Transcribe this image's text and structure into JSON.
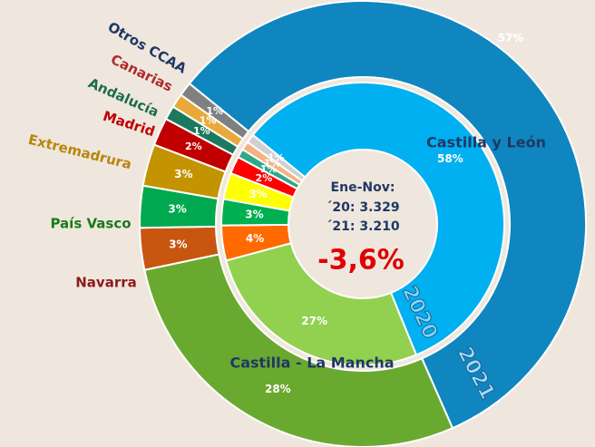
{
  "chart_data": {
    "type": "donut",
    "categories": [
      "Castilla y León",
      "Castilla - La Mancha",
      "Navarra",
      "País Vasco",
      "Extremadrura",
      "Madrid",
      "Andalucía",
      "Canarias",
      "Otros CCAA"
    ],
    "series": [
      {
        "name": "2021",
        "values": [
          57,
          28,
          3,
          3,
          3,
          2,
          1,
          1,
          1
        ],
        "value_labels": [
          "57%",
          "28%",
          "3%",
          "3%",
          "3%",
          "2%",
          "1%",
          "1%",
          "1%"
        ],
        "colors": [
          "#0f86c0",
          "#6aa92f",
          "#c8560f",
          "#00a94f",
          "#c39300",
          "#c00000",
          "#1b7a5e",
          "#e9a93a",
          "#808080"
        ]
      },
      {
        "name": "2020",
        "values": [
          58,
          27,
          4,
          3,
          3,
          2,
          1,
          1,
          1
        ],
        "value_labels": [
          "58%",
          "27%",
          "4%",
          "3%",
          "3%",
          "2%",
          "1%",
          "1%",
          "1%"
        ],
        "colors": [
          "#00b0f0",
          "#92d050",
          "#ff6a00",
          "#00b050",
          "#ffff00",
          "#ff0000",
          "#2fa88a",
          "#f4b183",
          "#d0d0d0"
        ]
      }
    ],
    "center_text": [
      "Ene-Nov:",
      "´20: 3.329",
      "´21: 3.210"
    ],
    "center_change": "-3,6%"
  }
}
